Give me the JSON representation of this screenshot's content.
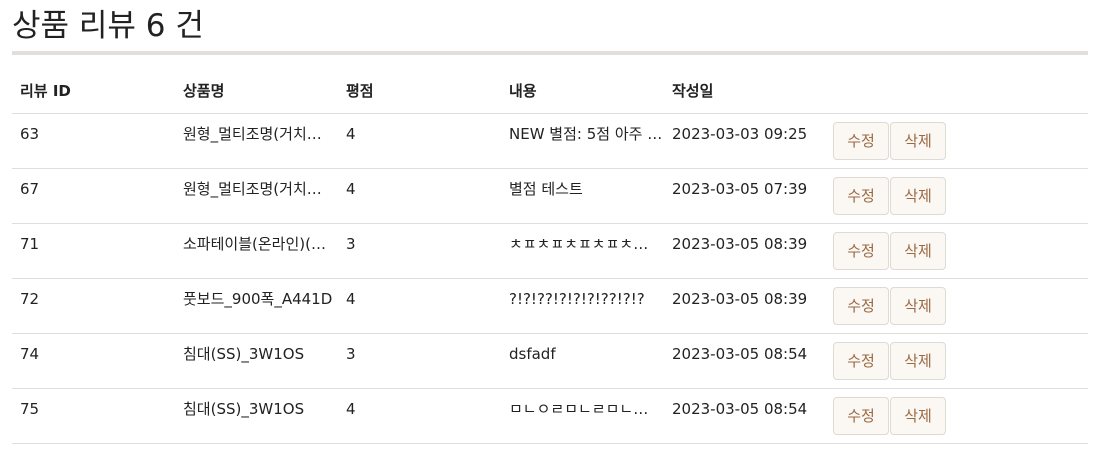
{
  "page": {
    "title": "상품 리뷰 6 건"
  },
  "table": {
    "headers": {
      "review_id": "리뷰 ID",
      "product_name": "상품명",
      "rating": "평점",
      "content": "내용",
      "created_at": "작성일",
      "actions": ""
    },
    "edit_label": "수정",
    "delete_label": "삭제",
    "rows": [
      {
        "review_id": "63",
        "product_name": "원형_멀티조명(거치…",
        "rating": "4",
        "content": "NEW 별점: 5점 아주 …",
        "created_at": "2023-03-03 09:25"
      },
      {
        "review_id": "67",
        "product_name": "원형_멀티조명(거치…",
        "rating": "4",
        "content": "별점 테스트",
        "created_at": "2023-03-05 07:39"
      },
      {
        "review_id": "71",
        "product_name": "소파테이블(온라인)(…",
        "rating": "3",
        "content": "ㅊㅍㅊㅍㅊㅍㅊㅍㅊ…",
        "created_at": "2023-03-05 08:39"
      },
      {
        "review_id": "72",
        "product_name": "풋보드_900폭_A441D",
        "rating": "4",
        "content": "?!?!??!?!?!?!??!?!?",
        "created_at": "2023-03-05 08:39"
      },
      {
        "review_id": "74",
        "product_name": "침대(SS)_3W1OS",
        "rating": "3",
        "content": "dsfadf",
        "created_at": "2023-03-05 08:54"
      },
      {
        "review_id": "75",
        "product_name": "침대(SS)_3W1OS",
        "rating": "4",
        "content": "ㅁㄴㅇㄹㅁㄴㄹㅁㄴ…",
        "created_at": "2023-03-05 08:54"
      }
    ]
  },
  "colors": {
    "button_text": "#9a6a44",
    "button_bg": "#fbf7f3",
    "rule": "#e2deda"
  }
}
